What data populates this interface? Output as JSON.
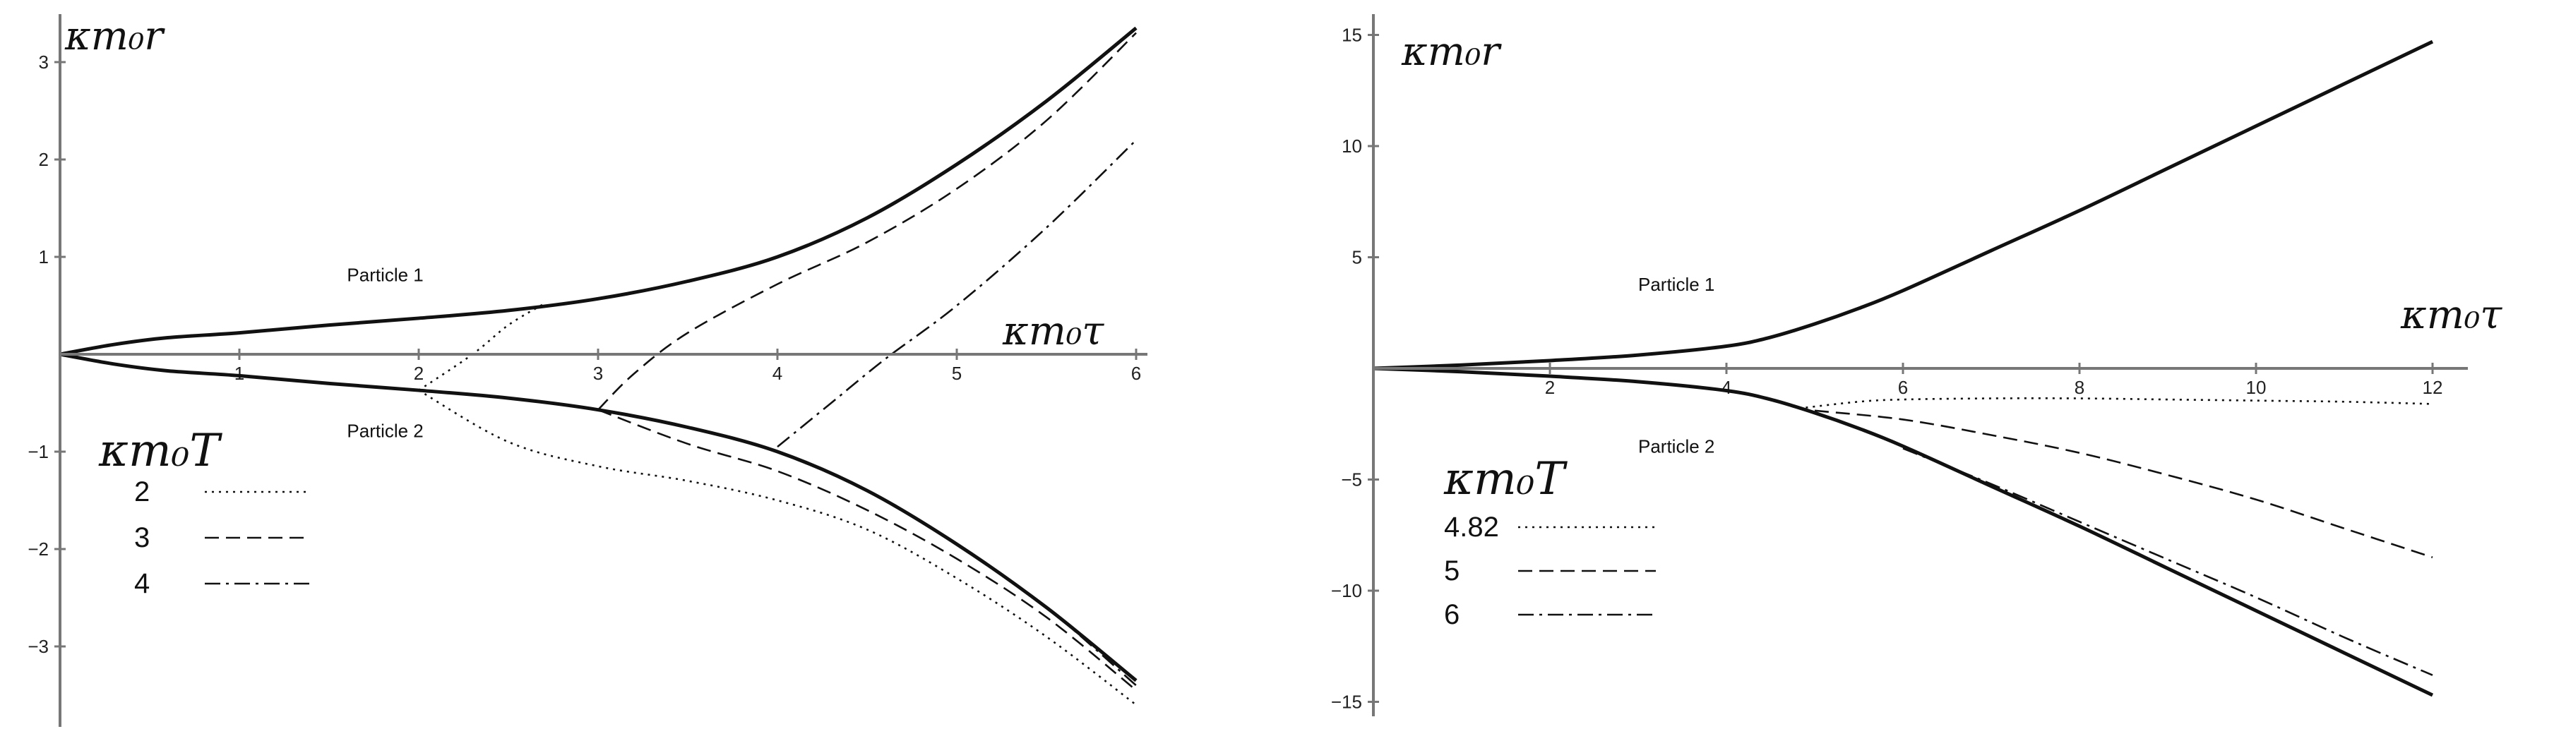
{
  "chart_data": [
    {
      "type": "line",
      "xlabel": "κm₀τ",
      "ylabel": "κm₀r",
      "xlim": [
        0,
        6.1
      ],
      "ylim": [
        -3.85,
        3.45
      ],
      "xticks": [
        1,
        2,
        3,
        4,
        5,
        6
      ],
      "yticks": [
        -3,
        -2,
        -1,
        1,
        2,
        3
      ],
      "grid": false,
      "legend_title": "κm₀T",
      "legend_position": "bottom-left",
      "curve_labels": [
        {
          "text": "Particle 1",
          "x": 1.6,
          "y": 0.75
        },
        {
          "text": "Particle 2",
          "x": 1.6,
          "y": -0.85
        }
      ],
      "series": [
        {
          "name": "",
          "style": "solid",
          "x": [
            0,
            0.3,
            0.6,
            1,
            1.5,
            2,
            2.5,
            3,
            3.5,
            4,
            4.5,
            5,
            5.5,
            6
          ],
          "y": [
            0,
            0.1,
            0.17,
            0.22,
            0.3,
            0.37,
            0.45,
            0.57,
            0.75,
            1.0,
            1.4,
            1.95,
            2.6,
            3.35
          ]
        },
        {
          "name": "",
          "style": "solid",
          "x": [
            0,
            0.3,
            0.6,
            1,
            1.5,
            2,
            2.5,
            3,
            3.5,
            4,
            4.5,
            5,
            5.5,
            6
          ],
          "y": [
            0,
            -0.1,
            -0.17,
            -0.22,
            -0.3,
            -0.37,
            -0.45,
            -0.57,
            -0.75,
            -1.0,
            -1.4,
            -1.95,
            -2.6,
            -3.35
          ]
        },
        {
          "name": "2",
          "style": "dotted",
          "x": [
            2.0,
            2.3,
            2.5,
            2.7
          ],
          "y": [
            -0.37,
            0.0,
            0.3,
            0.52
          ]
        },
        {
          "name": "2",
          "style": "dotted",
          "x": [
            2.0,
            2.5,
            3,
            3.5,
            4,
            4.5,
            5,
            5.5,
            6
          ],
          "y": [
            -0.37,
            -0.9,
            -1.15,
            -1.3,
            -1.5,
            -1.8,
            -2.3,
            -2.9,
            -3.6
          ]
        },
        {
          "name": "3",
          "style": "dashed",
          "x": [
            3.0,
            3.2,
            3.5,
            4,
            4.5,
            5,
            5.5,
            6
          ],
          "y": [
            -0.57,
            -0.2,
            0.22,
            0.72,
            1.15,
            1.7,
            2.4,
            3.3
          ]
        },
        {
          "name": "3",
          "style": "dashed",
          "x": [
            3.0,
            3.5,
            4,
            4.5,
            5,
            5.5,
            6
          ],
          "y": [
            -0.57,
            -0.92,
            -1.2,
            -1.6,
            -2.1,
            -2.7,
            -3.45
          ]
        },
        {
          "name": "4",
          "style": "dashdot",
          "x": [
            4.0,
            4.3,
            4.6,
            5,
            5.5,
            6
          ],
          "y": [
            -0.95,
            -0.5,
            -0.05,
            0.5,
            1.3,
            2.2
          ]
        },
        {
          "name": "4",
          "style": "dashdot",
          "x": [
            4.0,
            4.5,
            5,
            5.5,
            6
          ],
          "y": [
            -1.0,
            -1.4,
            -1.95,
            -2.6,
            -3.4
          ]
        }
      ]
    },
    {
      "type": "line",
      "xlabel": "κm₀τ",
      "ylabel": "κm₀r",
      "xlim": [
        0,
        12.3
      ],
      "ylim": [
        -15.5,
        15.5
      ],
      "xticks": [
        2,
        4,
        6,
        8,
        10,
        12
      ],
      "yticks": [
        -15,
        -10,
        -5,
        5,
        10,
        15
      ],
      "grid": false,
      "legend_title": "κm₀T",
      "legend_position": "bottom-left",
      "curve_labels": [
        {
          "text": "Particle 1",
          "x": 3.0,
          "y": 3.5
        },
        {
          "text": "Particle 2",
          "x": 3.0,
          "y": -3.8
        }
      ],
      "series": [
        {
          "name": "",
          "style": "solid",
          "x": [
            0,
            1,
            2,
            3,
            4,
            4.5,
            5,
            5.5,
            6,
            7,
            8,
            9,
            10,
            11,
            12
          ],
          "y": [
            0,
            0.15,
            0.35,
            0.6,
            1.0,
            1.4,
            2.0,
            2.7,
            3.5,
            5.3,
            7.1,
            9.0,
            10.9,
            12.8,
            14.7
          ]
        },
        {
          "name": "",
          "style": "solid",
          "x": [
            0,
            1,
            2,
            3,
            4,
            4.5,
            5,
            5.5,
            6,
            7,
            8,
            9,
            10,
            11,
            12
          ],
          "y": [
            0,
            -0.15,
            -0.35,
            -0.6,
            -1.0,
            -1.4,
            -2.0,
            -2.7,
            -3.5,
            -5.3,
            -7.1,
            -9.0,
            -10.9,
            -12.8,
            -14.7
          ]
        },
        {
          "name": "4.82",
          "style": "dotted",
          "x": [
            4.82,
            5.5,
            6,
            7,
            8,
            9,
            10,
            11,
            12
          ],
          "y": [
            -1.8,
            -1.5,
            -1.4,
            -1.35,
            -1.35,
            -1.4,
            -1.45,
            -1.5,
            -1.6
          ]
        },
        {
          "name": "5",
          "style": "dashed",
          "x": [
            5.0,
            6,
            7,
            8,
            9,
            10,
            11,
            12
          ],
          "y": [
            -1.9,
            -2.3,
            -3.0,
            -3.8,
            -4.8,
            -5.9,
            -7.2,
            -8.5
          ]
        },
        {
          "name": "6",
          "style": "dashdot",
          "x": [
            6.0,
            7,
            8,
            9,
            10,
            11,
            12
          ],
          "y": [
            -3.6,
            -5.2,
            -6.9,
            -8.6,
            -10.3,
            -12.1,
            -13.8
          ]
        }
      ]
    }
  ]
}
